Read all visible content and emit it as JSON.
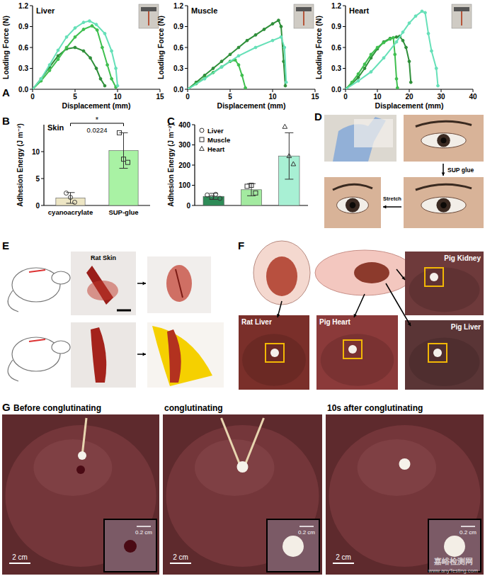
{
  "chart_data": [
    {
      "type": "line",
      "title": "Liver",
      "x_label": "Displacement (mm)",
      "y_label": "Loading Force (N)",
      "xlim": [
        0,
        15
      ],
      "ylim": [
        0,
        1.2
      ],
      "xticks": [
        0,
        5,
        10,
        15
      ],
      "yticks": [
        {
          "value": 0,
          "label": "0.0"
        },
        0.3,
        0.6,
        0.9,
        1.2
      ],
      "series": [
        {
          "color": "#2f8f3a",
          "marker": "circle",
          "x": [
            0,
            1,
            2,
            3,
            4,
            5,
            6,
            6.8,
            7.5,
            8,
            8.5
          ],
          "values": [
            0,
            0.15,
            0.32,
            0.48,
            0.58,
            0.6,
            0.55,
            0.45,
            0.3,
            0.15,
            0.05
          ]
        },
        {
          "color": "#3fbf4f",
          "marker": "circle",
          "x": [
            0,
            1,
            2,
            3,
            4,
            5,
            6,
            7,
            7.6,
            8.2,
            8.8,
            9.3,
            9.8
          ],
          "values": [
            0,
            0.12,
            0.27,
            0.43,
            0.6,
            0.75,
            0.86,
            0.91,
            0.85,
            0.6,
            0.35,
            0.15,
            0.03
          ]
        },
        {
          "color": "#66e0b8",
          "marker": "circle",
          "x": [
            0,
            1,
            2,
            3,
            4,
            5,
            6,
            6.7,
            7.5,
            8.5,
            9.3,
            9.8,
            10
          ],
          "values": [
            0,
            0.15,
            0.35,
            0.56,
            0.75,
            0.88,
            0.96,
            0.98,
            0.93,
            0.8,
            0.55,
            0.3,
            0.05
          ]
        }
      ]
    },
    {
      "type": "line",
      "title": "Muscle",
      "x_label": "Displacement (mm)",
      "y_label": "Loading Force (N)",
      "xlim": [
        0,
        15
      ],
      "ylim": [
        0,
        1.2
      ],
      "xticks": [
        0,
        5,
        10,
        15
      ],
      "yticks": [
        {
          "value": 0,
          "label": "0.0"
        },
        0.3,
        0.6,
        0.9,
        1.2
      ],
      "series": [
        {
          "color": "#2f8f3a",
          "marker": "circle",
          "x": [
            0,
            1,
            2,
            3,
            4,
            5,
            6,
            7,
            8,
            9,
            10,
            10.7,
            11,
            11.3,
            11.5
          ],
          "values": [
            0,
            0.1,
            0.2,
            0.3,
            0.4,
            0.5,
            0.6,
            0.7,
            0.78,
            0.86,
            0.94,
            0.99,
            0.9,
            0.4,
            0.05
          ]
        },
        {
          "color": "#3fbf4f",
          "marker": "circle",
          "x": [
            0,
            1,
            2,
            3,
            4,
            5,
            5.6,
            6,
            6.4,
            6.8
          ],
          "values": [
            0,
            0.08,
            0.16,
            0.24,
            0.32,
            0.4,
            0.42,
            0.35,
            0.2,
            0.02
          ]
        },
        {
          "color": "#66e0b8",
          "marker": "circle",
          "x": [
            0,
            2,
            4,
            6,
            8,
            10,
            11,
            11.4,
            11.6
          ],
          "values": [
            0,
            0.15,
            0.32,
            0.48,
            0.6,
            0.7,
            0.75,
            0.6,
            0.1
          ]
        }
      ]
    },
    {
      "type": "line",
      "title": "Heart",
      "x_label": "Displacement (mm)",
      "y_label": "Loading Force (N)",
      "xlim": [
        0,
        40
      ],
      "ylim": [
        0,
        1.2
      ],
      "xticks": [
        0,
        10,
        20,
        30,
        40
      ],
      "yticks": [
        {
          "value": 0,
          "label": "0.0"
        },
        0.3,
        0.6,
        0.9,
        1.2
      ],
      "series": [
        {
          "color": "#2f8f3a",
          "marker": "circle",
          "x": [
            0,
            2,
            4,
            6,
            8,
            10,
            12,
            14,
            16,
            17,
            18,
            19,
            20,
            20.5
          ],
          "values": [
            0,
            0.08,
            0.17,
            0.3,
            0.45,
            0.58,
            0.68,
            0.73,
            0.75,
            0.76,
            0.7,
            0.6,
            0.4,
            0.1
          ]
        },
        {
          "color": "#3fbf4f",
          "marker": "circle",
          "x": [
            0,
            2,
            4,
            6,
            8,
            10,
            12,
            14,
            15,
            15.5,
            16,
            16.3
          ],
          "values": [
            0,
            0.1,
            0.22,
            0.36,
            0.5,
            0.6,
            0.67,
            0.72,
            0.74,
            0.5,
            0.15,
            0.02
          ]
        },
        {
          "color": "#66e0b8",
          "marker": "circle",
          "x": [
            0,
            4,
            8,
            12,
            16,
            18,
            20,
            22,
            24,
            25,
            26,
            27,
            28.5,
            29
          ],
          "values": [
            0,
            0.12,
            0.25,
            0.45,
            0.68,
            0.82,
            0.95,
            1.05,
            1.12,
            1.1,
            0.8,
            0.55,
            0.3,
            0.05
          ]
        }
      ]
    },
    {
      "type": "bar",
      "title": "Skin",
      "y_label": "Adhesion Energy (J m⁻²)",
      "categories": [
        "cyanoacrylate",
        "SUP-glue"
      ],
      "ylim": [
        0,
        15
      ],
      "yticks": [
        0,
        5,
        10
      ],
      "series": [
        {
          "color": "#ede6c4",
          "marker": "circle",
          "values": [
            1.4,
            null
          ],
          "errors": [
            1.0,
            null
          ],
          "points": [
            [
              2.3,
              1.5,
              0.6
            ],
            null
          ]
        },
        {
          "color": "#a9f2a4",
          "marker": "square",
          "values": [
            null,
            10.2
          ],
          "errors": [
            null,
            3.3
          ],
          "points": [
            null,
            [
              13.5,
              8.6,
              8.0
            ]
          ]
        }
      ],
      "significance": {
        "label": "*",
        "p_value": 0.0224
      }
    },
    {
      "type": "bar",
      "y_label": "Adhesion Energy (J m⁻²)",
      "categories": [
        null,
        null,
        null
      ],
      "ylim": [
        0,
        400
      ],
      "yticks": [
        0,
        100,
        200,
        300,
        400
      ],
      "legend": "top-left",
      "tick_labels": "y",
      "series": [
        {
          "name": "Liver",
          "color": "#2e8b57",
          "marker": "circle",
          "values": [
            45,
            null,
            null
          ],
          "errors": [
            15,
            null,
            null
          ],
          "points": [
            [
              52,
              40,
              55,
              35
            ],
            null,
            null
          ]
        },
        {
          "name": "Muscle",
          "color": "#a3eaa0",
          "marker": "square",
          "values": [
            null,
            78,
            null
          ],
          "errors": [
            null,
            30,
            null
          ],
          "points": [
            null,
            [
              95,
              100,
              62
            ],
            null
          ]
        },
        {
          "name": "Heart",
          "color": "#a8f0d4",
          "marker": "triangle",
          "values": [
            null,
            null,
            245
          ],
          "errors": [
            null,
            null,
            115
          ],
          "points": [
            null,
            null,
            [
              390,
              245,
              205
            ]
          ]
        }
      ]
    }
  ],
  "figure": {
    "panel_labels": [
      "A",
      "B",
      "C",
      "D",
      "E",
      "F",
      "G"
    ],
    "panel_d": {
      "texts": [
        "SUP glue",
        "Stretch"
      ]
    },
    "panel_e": {
      "texts": [
        "Rat Skin"
      ]
    },
    "panel_f": {
      "texts": [
        "Rat Liver",
        "Pig Heart",
        "Pig Kidney",
        "Pig Liver"
      ]
    },
    "panel_g": {
      "titles": [
        "Before conglutinating",
        "conglutinating",
        "10s after conglutinating"
      ],
      "scale_bars": [
        "2 cm",
        "0.2 cm"
      ]
    },
    "watermark": [
      "嘉峪检测网",
      "www.anyTesting.com"
    ]
  }
}
